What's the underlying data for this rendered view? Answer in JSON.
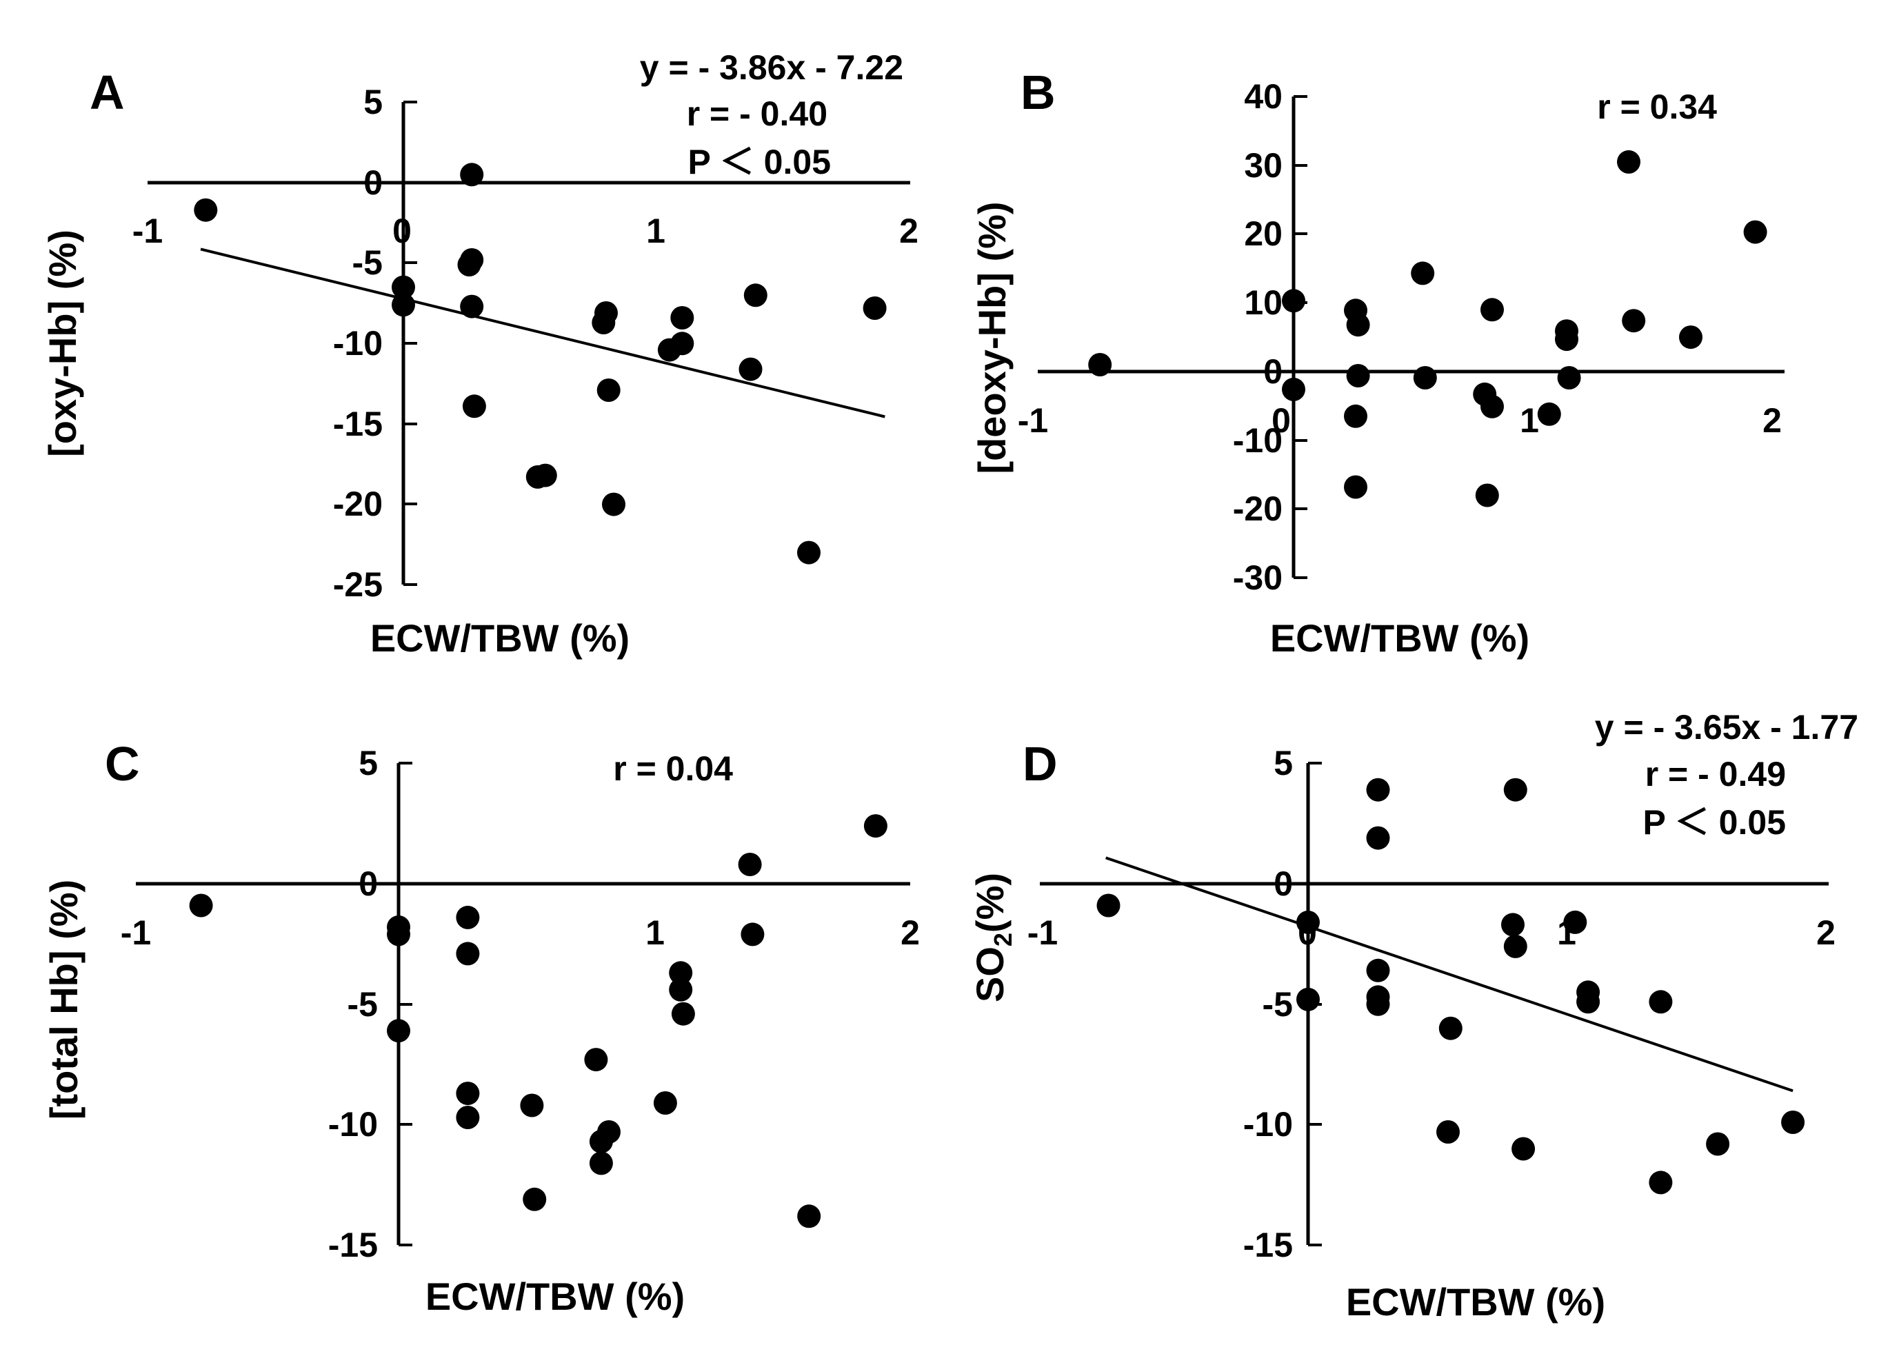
{
  "chart_data": [
    {
      "panel": "A",
      "type": "scatter",
      "xlabel": "ECW/TBW (%)",
      "ylabel": "[oxy-Hb] (%)",
      "xlim": [
        -1,
        2
      ],
      "ylim": [
        -25,
        5
      ],
      "xticks": [
        -1,
        0,
        1,
        2
      ],
      "yticks": [
        5,
        0,
        -5,
        -10,
        -15,
        -20,
        -25
      ],
      "annotations": [
        "y = - 3.86x - 7.22",
        "r = - 0.40",
        "P < 0.05"
      ],
      "regression": {
        "slope": -3.86,
        "intercept": -7.22,
        "x_range": [
          -0.8,
          1.9
        ]
      },
      "points": [
        {
          "x": -0.78,
          "y": -1.7
        },
        {
          "x": 0.0,
          "y": -6.5
        },
        {
          "x": 0.0,
          "y": -7.6
        },
        {
          "x": 0.27,
          "y": 0.5
        },
        {
          "x": 0.27,
          "y": -4.8
        },
        {
          "x": 0.26,
          "y": -5.1
        },
        {
          "x": 0.27,
          "y": -7.7
        },
        {
          "x": 0.28,
          "y": -13.9
        },
        {
          "x": 0.53,
          "y": -18.3
        },
        {
          "x": 0.56,
          "y": -18.2
        },
        {
          "x": 0.79,
          "y": -8.7
        },
        {
          "x": 0.8,
          "y": -8.1
        },
        {
          "x": 0.81,
          "y": -12.9
        },
        {
          "x": 0.83,
          "y": -20.0
        },
        {
          "x": 1.05,
          "y": -10.4
        },
        {
          "x": 1.1,
          "y": -10.0
        },
        {
          "x": 1.1,
          "y": -8.4
        },
        {
          "x": 1.37,
          "y": -11.6
        },
        {
          "x": 1.39,
          "y": -7.0
        },
        {
          "x": 1.6,
          "y": -23.0
        },
        {
          "x": 1.86,
          "y": -7.8
        }
      ]
    },
    {
      "panel": "B",
      "type": "scatter",
      "xlabel": "ECW/TBW (%)",
      "ylabel": "[deoxy-Hb] (%)",
      "xlim": [
        -1,
        2
      ],
      "ylim": [
        -30,
        40
      ],
      "xticks": [
        -1,
        0,
        1,
        2
      ],
      "yticks": [
        40,
        30,
        20,
        10,
        0,
        -10,
        -20,
        -30
      ],
      "annotations": [
        "r = 0.34"
      ],
      "points": [
        {
          "x": -0.78,
          "y": 1.0
        },
        {
          "x": 0.0,
          "y": 10.3
        },
        {
          "x": 0.0,
          "y": -2.6
        },
        {
          "x": 0.25,
          "y": 8.9
        },
        {
          "x": 0.26,
          "y": 6.8
        },
        {
          "x": 0.26,
          "y": -0.6
        },
        {
          "x": 0.25,
          "y": -6.5
        },
        {
          "x": 0.25,
          "y": -16.8
        },
        {
          "x": 0.52,
          "y": 14.3
        },
        {
          "x": 0.53,
          "y": -0.9
        },
        {
          "x": 0.77,
          "y": -3.3
        },
        {
          "x": 0.8,
          "y": -5.1
        },
        {
          "x": 0.8,
          "y": 9.0
        },
        {
          "x": 0.78,
          "y": -18.0
        },
        {
          "x": 1.03,
          "y": -6.2
        },
        {
          "x": 1.1,
          "y": 5.9
        },
        {
          "x": 1.1,
          "y": 4.7
        },
        {
          "x": 1.11,
          "y": -0.9
        },
        {
          "x": 1.35,
          "y": 30.5
        },
        {
          "x": 1.37,
          "y": 7.4
        },
        {
          "x": 1.6,
          "y": 5.0
        },
        {
          "x": 1.86,
          "y": 20.3
        }
      ]
    },
    {
      "panel": "C",
      "type": "scatter",
      "xlabel": "ECW/TBW (%)",
      "ylabel": "[total Hb] (%)",
      "xlim": [
        -1,
        2
      ],
      "ylim": [
        -15,
        5
      ],
      "xticks": [
        -1,
        0,
        1,
        2
      ],
      "yticks": [
        5,
        0,
        -5,
        -10,
        -15
      ],
      "annotations": [
        "r = 0.04"
      ],
      "points": [
        {
          "x": -0.77,
          "y": -0.9
        },
        {
          "x": 0.0,
          "y": -1.8
        },
        {
          "x": 0.0,
          "y": -2.1
        },
        {
          "x": 0.0,
          "y": -6.1
        },
        {
          "x": 0.27,
          "y": -1.4
        },
        {
          "x": 0.27,
          "y": -2.9
        },
        {
          "x": 0.27,
          "y": -8.7
        },
        {
          "x": 0.27,
          "y": -9.7
        },
        {
          "x": 0.52,
          "y": -9.2
        },
        {
          "x": 0.53,
          "y": -13.1
        },
        {
          "x": 0.77,
          "y": -7.3
        },
        {
          "x": 0.79,
          "y": -10.7
        },
        {
          "x": 0.79,
          "y": -11.6
        },
        {
          "x": 0.82,
          "y": -10.3
        },
        {
          "x": 1.04,
          "y": -9.1
        },
        {
          "x": 1.1,
          "y": -3.7
        },
        {
          "x": 1.1,
          "y": -4.4
        },
        {
          "x": 1.11,
          "y": -5.4
        },
        {
          "x": 1.37,
          "y": 0.8
        },
        {
          "x": 1.38,
          "y": -2.1
        },
        {
          "x": 1.6,
          "y": -13.8
        },
        {
          "x": 1.86,
          "y": 2.4
        }
      ]
    },
    {
      "panel": "D",
      "type": "scatter",
      "xlabel": "ECW/TBW (%)",
      "ylabel": "SO2(%)",
      "xlim": [
        -1,
        2
      ],
      "ylim": [
        -15,
        5
      ],
      "xticks": [
        -1,
        0,
        1,
        2
      ],
      "yticks": [
        5,
        0,
        -5,
        -10,
        -15
      ],
      "annotations": [
        "y = - 3.65x - 1.77",
        "r = - 0.49",
        "P < 0.05"
      ],
      "regression": {
        "slope": -3.65,
        "intercept": -1.77,
        "x_range": [
          -0.78,
          1.87
        ]
      },
      "points": [
        {
          "x": -0.77,
          "y": -0.9
        },
        {
          "x": 0.0,
          "y": -1.6
        },
        {
          "x": 0.0,
          "y": -4.8
        },
        {
          "x": 0.27,
          "y": 3.9
        },
        {
          "x": 0.27,
          "y": 1.9
        },
        {
          "x": 0.27,
          "y": -3.6
        },
        {
          "x": 0.27,
          "y": -4.7
        },
        {
          "x": 0.27,
          "y": -5.0
        },
        {
          "x": 0.55,
          "y": -6.0
        },
        {
          "x": 0.54,
          "y": -10.3
        },
        {
          "x": 0.79,
          "y": -1.7
        },
        {
          "x": 0.8,
          "y": 3.9
        },
        {
          "x": 0.8,
          "y": -2.6
        },
        {
          "x": 0.83,
          "y": -11.0
        },
        {
          "x": 1.03,
          "y": -1.6
        },
        {
          "x": 1.08,
          "y": -4.5
        },
        {
          "x": 1.08,
          "y": -4.9
        },
        {
          "x": 1.36,
          "y": -4.9
        },
        {
          "x": 1.36,
          "y": -12.4
        },
        {
          "x": 1.58,
          "y": -10.8
        },
        {
          "x": 1.87,
          "y": -9.9
        }
      ]
    }
  ]
}
